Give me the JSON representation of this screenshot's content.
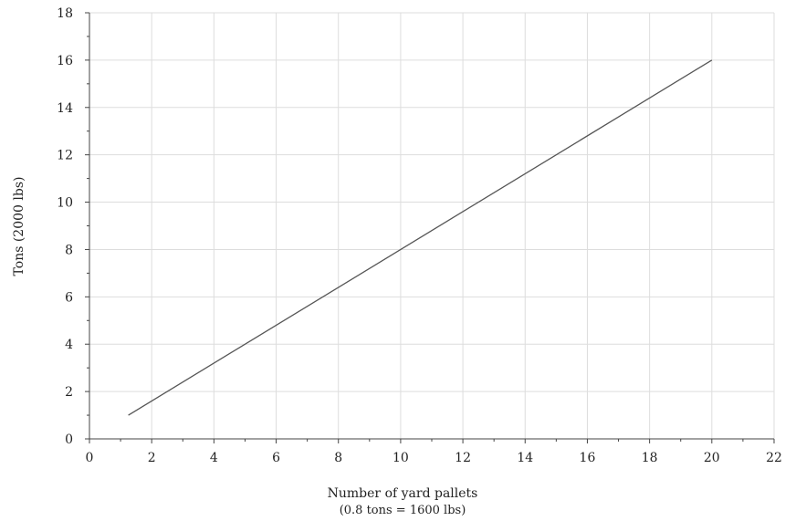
{
  "chart_data": {
    "type": "line",
    "title": "",
    "xlabel": "Number of yard pallets",
    "xlabel_note": "(0.8 tons = 1600 lbs)",
    "ylabel": "Tons (2000 lbs)",
    "xlim": [
      0,
      22
    ],
    "ylim": [
      0,
      18
    ],
    "x_ticks": [
      0,
      2,
      4,
      6,
      8,
      10,
      12,
      14,
      16,
      18,
      20,
      22
    ],
    "y_ticks": [
      0,
      2,
      4,
      6,
      8,
      10,
      12,
      14,
      16,
      18
    ],
    "grid": true,
    "legend": "none",
    "series": [
      {
        "x": [
          1.25,
          20
        ],
        "y": [
          1.0,
          16.0
        ]
      }
    ],
    "colors": {
      "line": "#555555",
      "grid": "#dddddd",
      "axis": "#444444"
    }
  }
}
